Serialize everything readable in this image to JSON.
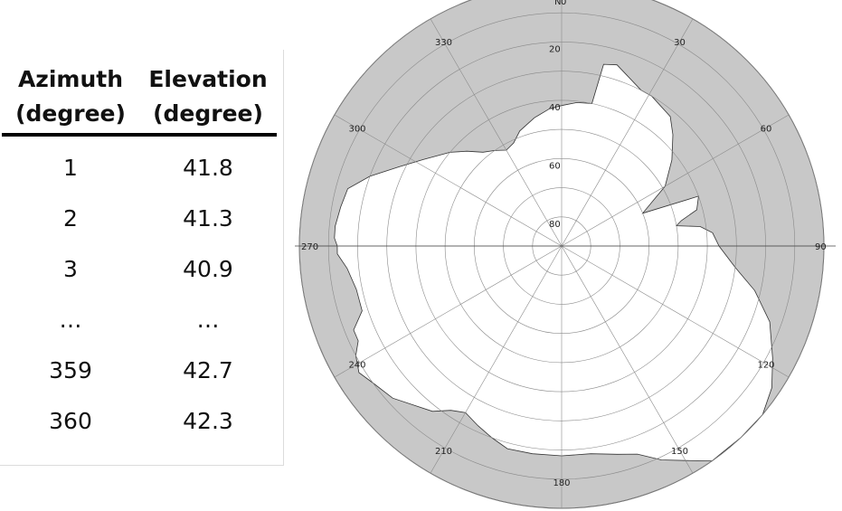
{
  "table": {
    "headers": [
      {
        "line1": "Azimuth",
        "line2": "(degree)"
      },
      {
        "line1": "Elevation",
        "line2": "(degree)"
      }
    ],
    "rows": [
      [
        "1",
        "41.8"
      ],
      [
        "2",
        "41.3"
      ],
      [
        "3",
        "40.9"
      ],
      [
        "…",
        "…"
      ],
      [
        "359",
        "42.7"
      ],
      [
        "360",
        "42.3"
      ]
    ]
  },
  "chart_data": {
    "type": "polar-area",
    "direction_label": "N",
    "rlim": [
      0,
      90
    ],
    "angle_ticks": [
      {
        "azimuth": 0,
        "label": "0"
      },
      {
        "azimuth": 30,
        "label": "30"
      },
      {
        "azimuth": 60,
        "label": "60"
      },
      {
        "azimuth": 90,
        "label": "90"
      },
      {
        "azimuth": 120,
        "label": "120"
      },
      {
        "azimuth": 150,
        "label": "150"
      },
      {
        "azimuth": 180,
        "label": "180"
      },
      {
        "azimuth": 210,
        "label": "210"
      },
      {
        "azimuth": 240,
        "label": "240"
      },
      {
        "azimuth": 270,
        "label": "270"
      },
      {
        "azimuth": 300,
        "label": "300"
      },
      {
        "azimuth": 330,
        "label": "330"
      }
    ],
    "radial_ticks": [
      {
        "value": 20,
        "label": "20"
      },
      {
        "value": 40,
        "label": "40"
      },
      {
        "value": 60,
        "label": "60"
      },
      {
        "value": 80,
        "label": "80"
      }
    ],
    "grid": true,
    "sky_color": "#ffffff",
    "obstruction_color": "#c8c8c8",
    "horizon": {
      "azimuth": [
        0,
        6,
        12,
        13,
        17,
        27,
        31,
        40,
        45,
        52,
        60,
        68,
        70,
        75,
        78,
        80,
        82,
        85,
        90,
        97,
        103,
        110,
        118,
        124,
        130,
        137,
        145,
        150,
        155,
        160,
        165,
        172,
        180,
        188,
        195,
        200,
        205,
        210,
        214,
        218,
        222,
        228,
        234,
        238,
        242,
        245,
        248,
        252,
        258,
        264,
        268,
        270,
        272,
        275,
        280,
        285,
        290,
        296,
        302,
        310,
        315,
        320,
        325,
        330,
        335,
        340,
        348,
        355
      ],
      "elevation": [
        41.8,
        40.5,
        40,
        26,
        25,
        30,
        30,
        32,
        36,
        42,
        49,
        60,
        40,
        42,
        48,
        50,
        42,
        38,
        36,
        30,
        22,
        14,
        8,
        3,
        0,
        0,
        0,
        5,
        9,
        14,
        16,
        18,
        18,
        18,
        18,
        20,
        22,
        24,
        22,
        18,
        16,
        12,
        10,
        8,
        10,
        13,
        13,
        18,
        18,
        16,
        13,
        13,
        12,
        12,
        13,
        14,
        20,
        28,
        34,
        40,
        44,
        48,
        50,
        52,
        51,
        48,
        45,
        42.7
      ]
    }
  },
  "colors": {
    "text": "#222222",
    "grid": "#8a8a8a",
    "rule": "#000000"
  }
}
